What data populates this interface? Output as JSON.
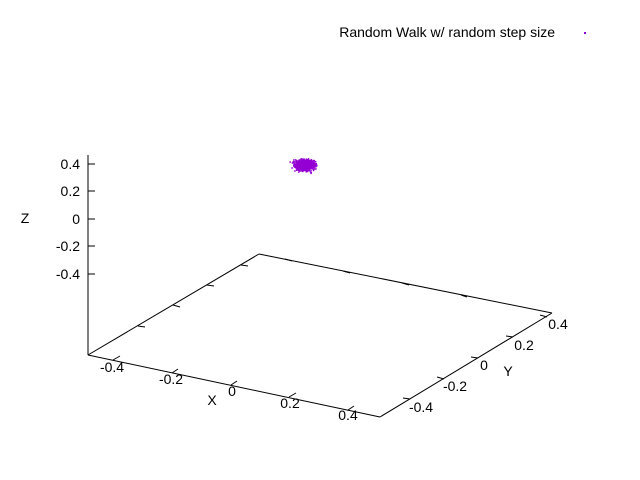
{
  "chart_data": {
    "type": "scatter",
    "title": "",
    "xlabel": "X",
    "ylabel": "Y",
    "zlabel": "Z",
    "xlim": [
      -0.5,
      0.5
    ],
    "ylim": [
      -0.5,
      0.5
    ],
    "zlim": [
      -0.5,
      0.5
    ],
    "x_ticks": [
      "-0.4",
      "-0.2",
      "0",
      "0.2",
      "0.4"
    ],
    "y_ticks": [
      "-0.4",
      "-0.2",
      "0",
      "0.2",
      "0.4"
    ],
    "z_ticks": [
      "0.4",
      "0.2",
      "0",
      "-0.2",
      "-0.4"
    ],
    "grid": false,
    "legend_position": "top-right",
    "series": [
      {
        "name": "Random Walk w/ random step size",
        "color": "#9400d3",
        "point_count": 2000,
        "center": [
          -0.08,
          0.05,
          0.15
        ],
        "spread": 0.012
      }
    ]
  }
}
